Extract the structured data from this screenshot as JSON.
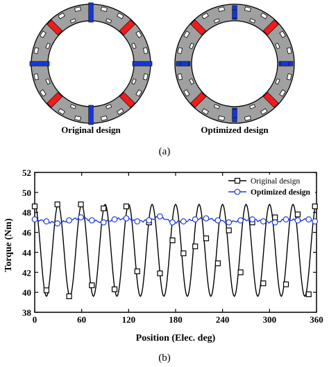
{
  "designs": [
    {
      "caption": "Original design",
      "colors": {
        "ring": "#a0a0a0",
        "magnet_n": "#ef1c1c",
        "magnet_s": "#1537d6"
      }
    },
    {
      "caption": "Optimized design",
      "colors": {
        "ring": "#a0a0a0",
        "magnet_n": "#ef1c1c",
        "magnet_s": "#1537d6"
      }
    }
  ],
  "subfig_a_label": "(a)",
  "subfig_b_label": "(b)",
  "chart_data": {
    "type": "line",
    "xlabel": "Position (Elec. deg)",
    "ylabel": "Torque (Nm)",
    "xlim": [
      0,
      360
    ],
    "ylim": [
      38,
      52
    ],
    "xticks": [
      0,
      60,
      120,
      180,
      240,
      300,
      360
    ],
    "yticks": [
      38,
      40,
      42,
      44,
      46,
      48,
      50,
      52
    ],
    "grid": false,
    "legend_position": "top-right",
    "series": [
      {
        "name": "Original design",
        "color": "#000000",
        "marker": "square",
        "period_deg": 30,
        "mean": 44.2,
        "amplitude": 4.6,
        "marker_points": [
          [
            0,
            48.6
          ],
          [
            15,
            40.2
          ],
          [
            29,
            48.8
          ],
          [
            44,
            39.6
          ],
          [
            59,
            48.8
          ],
          [
            73,
            40.7
          ],
          [
            88,
            48.4
          ],
          [
            102,
            40.3
          ],
          [
            117,
            48.6
          ],
          [
            131,
            42.1
          ],
          [
            146,
            47.0
          ],
          [
            160,
            41.9
          ],
          [
            176,
            45.2
          ],
          [
            190,
            43.9
          ],
          [
            205,
            44.6
          ],
          [
            219,
            45.4
          ],
          [
            234,
            42.9
          ],
          [
            248,
            46.2
          ],
          [
            263,
            42.0
          ],
          [
            278,
            47.0
          ],
          [
            292,
            40.9
          ],
          [
            307,
            47.5
          ],
          [
            321,
            40.8
          ],
          [
            336,
            47.8
          ],
          [
            350,
            39.8
          ],
          [
            358,
            48.6
          ]
        ]
      },
      {
        "name": "Optimized design",
        "color": "#1f3bd6",
        "marker": "circle",
        "mean": 47.2,
        "amplitude": 0.3,
        "marker_points": [
          [
            0,
            47.3
          ],
          [
            15,
            47.1
          ],
          [
            29,
            46.9
          ],
          [
            44,
            47.2
          ],
          [
            59,
            47.5
          ],
          [
            73,
            47.2
          ],
          [
            88,
            47.0
          ],
          [
            102,
            47.3
          ],
          [
            117,
            47.4
          ],
          [
            131,
            47.1
          ],
          [
            146,
            47.2
          ],
          [
            160,
            47.6
          ],
          [
            176,
            47.0
          ],
          [
            190,
            47.1
          ],
          [
            205,
            47.3
          ],
          [
            219,
            47.4
          ],
          [
            234,
            47.2
          ],
          [
            248,
            47.0
          ],
          [
            263,
            47.2
          ],
          [
            278,
            47.3
          ],
          [
            292,
            47.1
          ],
          [
            307,
            47.0
          ],
          [
            321,
            47.3
          ],
          [
            336,
            47.2
          ],
          [
            350,
            47.3
          ],
          [
            358,
            47.1
          ]
        ]
      }
    ]
  }
}
